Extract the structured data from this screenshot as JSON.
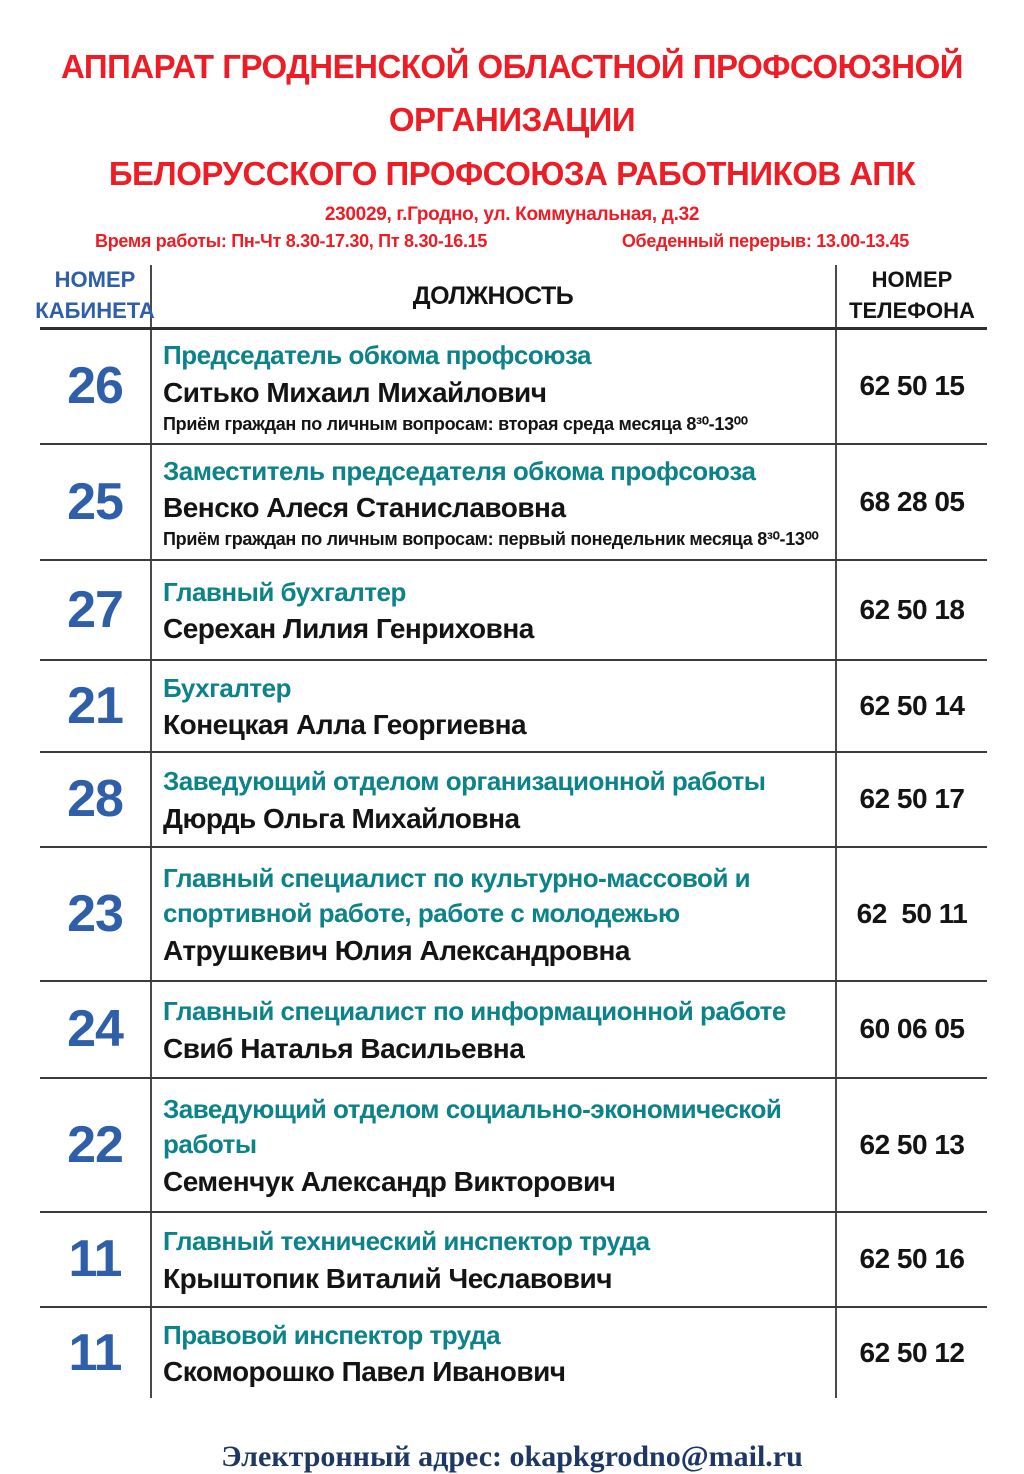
{
  "header": {
    "title_line1": "АППАРАТ ГРОДНЕНСКОЙ ОБЛАСТНОЙ ПРОФСОЮЗНОЙ ОРГАНИЗАЦИИ",
    "title_line2": "БЕЛОРУССКОГО ПРОФСОЮЗА РАБОТНИКОВ АПК",
    "address": "230029, г.Гродно, ул. Коммунальная, д.32",
    "work_hours": "Время работы: Пн-Чт 8.30-17.30, Пт 8.30-16.15",
    "lunch_break": "Обеденный перерыв: 13.00-13.45"
  },
  "colors": {
    "title_red": "#ee1c25",
    "cabinet_blue": "#2e5fa8",
    "position_teal": "#0c8289",
    "text_black": "#141414",
    "footer_navy": "#1d3865"
  },
  "table": {
    "headers": {
      "cabinet_line1": "НОМЕР",
      "cabinet_line2": "КАБИНЕТА",
      "position": "ДОЛЖНОСТЬ",
      "phone_line1": "НОМЕР",
      "phone_line2": "ТЕЛЕФОНА"
    },
    "rows": [
      {
        "cabinet": "26",
        "position": "Председатель обкома профсоюза",
        "name": "Ситько Михаил Михайлович",
        "note": "Приём граждан по личным вопросам: вторая среда месяца 8³⁰-13⁰⁰",
        "phone": "62 50 15"
      },
      {
        "cabinet": "25",
        "position": "Заместитель председателя обкома профсоюза",
        "name": "Венско Алеся Станиславовна",
        "note": "Приём граждан по личным вопросам: первый понедельник месяца 8³⁰-13⁰⁰",
        "phone": "68 28 05"
      },
      {
        "cabinet": "27",
        "position": "Главный бухгалтер",
        "name": "Серехан Лилия Генриховна",
        "note": "",
        "phone": "62 50 18"
      },
      {
        "cabinet": "21",
        "position": "Бухгалтер",
        "name": "Конецкая Алла Георгиевна",
        "note": "",
        "phone": "62 50 14"
      },
      {
        "cabinet": "28",
        "position": "Заведующий отделом организационной  работы",
        "name": "Дюрдь Ольга Михайловна",
        "note": "",
        "phone": "62 50 17"
      },
      {
        "cabinet": "23",
        "position": "Главный специалист по культурно-массовой и спортивной работе, работе с молодежью",
        "name": "Атрушкевич Юлия Александровна",
        "note": "",
        "phone": "62  50 11"
      },
      {
        "cabinet": "24",
        "position": "Главный специалист по информационной работе",
        "name": "Свиб Наталья Васильевна",
        "note": "",
        "phone": "60 06 05"
      },
      {
        "cabinet": "22",
        "position": "Заведующий отделом социально-экономической работы",
        "name": "Семенчук Александр Викторович",
        "note": "",
        "phone": "62 50 13"
      },
      {
        "cabinet": "11",
        "position": "Главный технический инспектор труда",
        "name": "Крыштопик Виталий Чеславович",
        "note": "",
        "phone": "62 50 16"
      },
      {
        "cabinet": "11",
        "position": "Правовой инспектор труда",
        "name": "Скоморошко Павел Иванович",
        "note": "",
        "phone": "62 50 12"
      }
    ]
  },
  "footer": {
    "label": "Электронный адрес:",
    "email": "okapkgrodno@mail.ru"
  }
}
